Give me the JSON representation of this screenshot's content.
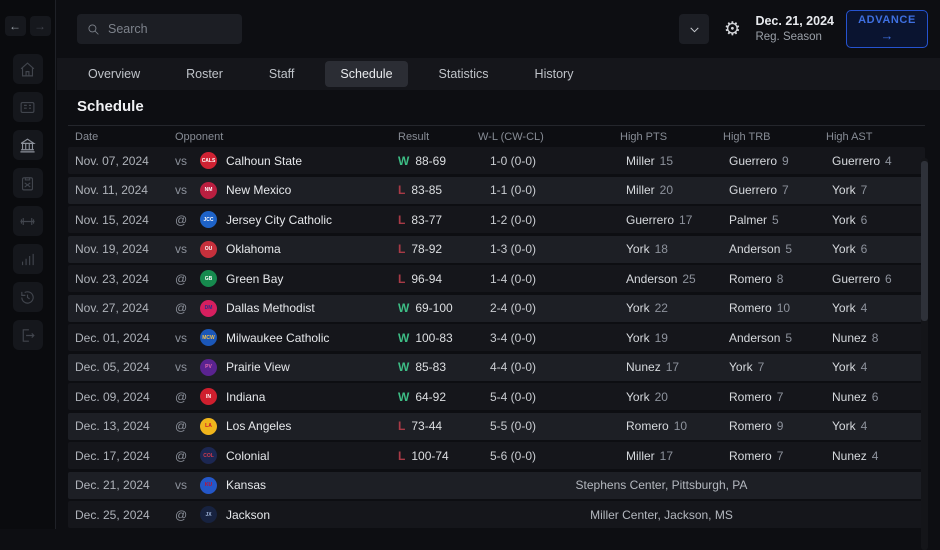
{
  "topbar": {
    "search_placeholder": "Search",
    "date_label": "Dec. 21, 2024",
    "season_label": "Reg. Season",
    "advance_label": "ADVANCE",
    "advance_arrow": "→",
    "nav_back": "←",
    "nav_forward": "→"
  },
  "sidebar": {
    "icons": [
      "home-icon",
      "scoreboard-icon",
      "bank-icon",
      "clipboard-icon",
      "dumbbell-icon",
      "bar-chart-icon",
      "history-icon",
      "exit-icon"
    ]
  },
  "tabs": {
    "items": [
      {
        "label": "Overview",
        "active": false
      },
      {
        "label": "Roster",
        "active": false
      },
      {
        "label": "Staff",
        "active": false
      },
      {
        "label": "Schedule",
        "active": true
      },
      {
        "label": "Statistics",
        "active": false
      },
      {
        "label": "History",
        "active": false
      }
    ]
  },
  "main": {
    "title": "Schedule"
  },
  "colors": {
    "win": "#3dbd85",
    "loss": "#a83a46",
    "accent_blue": "#3e6fe0"
  },
  "table": {
    "headers": [
      "Date",
      "Opponent",
      "Result",
      "W-L (CW-CL)",
      "High PTS",
      "High TRB",
      "High AST"
    ],
    "rows": [
      {
        "date": "Nov. 07, 2024",
        "at": "vs",
        "team": "Calhoun State",
        "logo": {
          "abbr": "CALS",
          "bg": "#cf2233",
          "fg": "#ffffff"
        },
        "result": {
          "outcome": "W",
          "score": "88-69"
        },
        "record": "1-0 (0-0)",
        "high_pts": {
          "player": "Miller",
          "value": "15"
        },
        "high_trb": {
          "player": "Guerrero",
          "value": "9"
        },
        "high_ast": {
          "player": "Guerrero",
          "value": "4"
        }
      },
      {
        "date": "Nov. 11, 2024",
        "at": "vs",
        "team": "New Mexico",
        "logo": {
          "abbr": "NM",
          "bg": "#ba1f40",
          "fg": "#ffffff"
        },
        "result": {
          "outcome": "L",
          "score": "83-85"
        },
        "record": "1-1 (0-0)",
        "high_pts": {
          "player": "Miller",
          "value": "20"
        },
        "high_trb": {
          "player": "Guerrero",
          "value": "7"
        },
        "high_ast": {
          "player": "York",
          "value": "7"
        }
      },
      {
        "date": "Nov. 15, 2024",
        "at": "@",
        "team": "Jersey City Catholic",
        "logo": {
          "abbr": "JCC",
          "bg": "#1e63c8",
          "fg": "#ffffff"
        },
        "result": {
          "outcome": "L",
          "score": "83-77"
        },
        "record": "1-2 (0-0)",
        "high_pts": {
          "player": "Guerrero",
          "value": "17"
        },
        "high_trb": {
          "player": "Palmer",
          "value": "5"
        },
        "high_ast": {
          "player": "York",
          "value": "6"
        }
      },
      {
        "date": "Nov. 19, 2024",
        "at": "vs",
        "team": "Oklahoma",
        "logo": {
          "abbr": "OU",
          "bg": "#c6303c",
          "fg": "#ffffff"
        },
        "result": {
          "outcome": "L",
          "score": "78-92"
        },
        "record": "1-3 (0-0)",
        "high_pts": {
          "player": "York",
          "value": "18"
        },
        "high_trb": {
          "player": "Anderson",
          "value": "5"
        },
        "high_ast": {
          "player": "York",
          "value": "6"
        }
      },
      {
        "date": "Nov. 23, 2024",
        "at": "@",
        "team": "Green Bay",
        "logo": {
          "abbr": "GB",
          "bg": "#168a4e",
          "fg": "#ffffff"
        },
        "result": {
          "outcome": "L",
          "score": "96-94"
        },
        "record": "1-4 (0-0)",
        "high_pts": {
          "player": "Anderson",
          "value": "25"
        },
        "high_trb": {
          "player": "Romero",
          "value": "8"
        },
        "high_ast": {
          "player": "Guerrero",
          "value": "6"
        }
      },
      {
        "date": "Nov. 27, 2024",
        "at": "@",
        "team": "Dallas Methodist",
        "logo": {
          "abbr": "DM",
          "bg": "#d61f5f",
          "fg": "#2b2e8c"
        },
        "result": {
          "outcome": "W",
          "score": "69-100"
        },
        "record": "2-4 (0-0)",
        "high_pts": {
          "player": "York",
          "value": "22"
        },
        "high_trb": {
          "player": "Romero",
          "value": "10"
        },
        "high_ast": {
          "player": "York",
          "value": "4"
        }
      },
      {
        "date": "Dec. 01, 2024",
        "at": "vs",
        "team": "Milwaukee Catholic",
        "logo": {
          "abbr": "MCW",
          "bg": "#1b57b8",
          "fg": "#f2c14e"
        },
        "result": {
          "outcome": "W",
          "score": "100-83"
        },
        "record": "3-4 (0-0)",
        "high_pts": {
          "player": "York",
          "value": "19"
        },
        "high_trb": {
          "player": "Anderson",
          "value": "5"
        },
        "high_ast": {
          "player": "Nunez",
          "value": "8"
        }
      },
      {
        "date": "Dec. 05, 2024",
        "at": "vs",
        "team": "Prairie View",
        "logo": {
          "abbr": "PV",
          "bg": "#5a2390",
          "fg": "#e86ab0"
        },
        "result": {
          "outcome": "W",
          "score": "85-83"
        },
        "record": "4-4 (0-0)",
        "high_pts": {
          "player": "Nunez",
          "value": "17"
        },
        "high_trb": {
          "player": "York",
          "value": "7"
        },
        "high_ast": {
          "player": "York",
          "value": "4"
        }
      },
      {
        "date": "Dec. 09, 2024",
        "at": "@",
        "team": "Indiana",
        "logo": {
          "abbr": "IN",
          "bg": "#cf1f2e",
          "fg": "#ffffff"
        },
        "result": {
          "outcome": "W",
          "score": "64-92"
        },
        "record": "5-4 (0-0)",
        "high_pts": {
          "player": "York",
          "value": "20"
        },
        "high_trb": {
          "player": "Romero",
          "value": "7"
        },
        "high_ast": {
          "player": "Nunez",
          "value": "6"
        }
      },
      {
        "date": "Dec. 13, 2024",
        "at": "@",
        "team": "Los Angeles",
        "logo": {
          "abbr": "LA",
          "bg": "#f0b51c",
          "fg": "#c8102e"
        },
        "result": {
          "outcome": "L",
          "score": "73-44"
        },
        "record": "5-5 (0-0)",
        "high_pts": {
          "player": "Romero",
          "value": "10"
        },
        "high_trb": {
          "player": "Romero",
          "value": "9"
        },
        "high_ast": {
          "player": "York",
          "value": "4"
        }
      },
      {
        "date": "Dec. 17, 2024",
        "at": "@",
        "team": "Colonial",
        "logo": {
          "abbr": "COL",
          "bg": "#1c2752",
          "fg": "#d23b4e"
        },
        "result": {
          "outcome": "L",
          "score": "100-74"
        },
        "record": "5-6 (0-0)",
        "high_pts": {
          "player": "Miller",
          "value": "17"
        },
        "high_trb": {
          "player": "Romero",
          "value": "7"
        },
        "high_ast": {
          "player": "Nunez",
          "value": "4"
        }
      },
      {
        "date": "Dec. 21, 2024",
        "at": "vs",
        "team": "Kansas",
        "logo": {
          "abbr": "KU",
          "bg": "#2457c8",
          "fg": "#c8102e"
        },
        "venue": "Stephens Center, Pittsburgh, PA"
      },
      {
        "date": "Dec. 25, 2024",
        "at": "@",
        "team": "Jackson",
        "logo": {
          "abbr": "JX",
          "bg": "#17223f",
          "fg": "#9fb4d8"
        },
        "venue": "Miller Center, Jackson, MS"
      }
    ]
  }
}
